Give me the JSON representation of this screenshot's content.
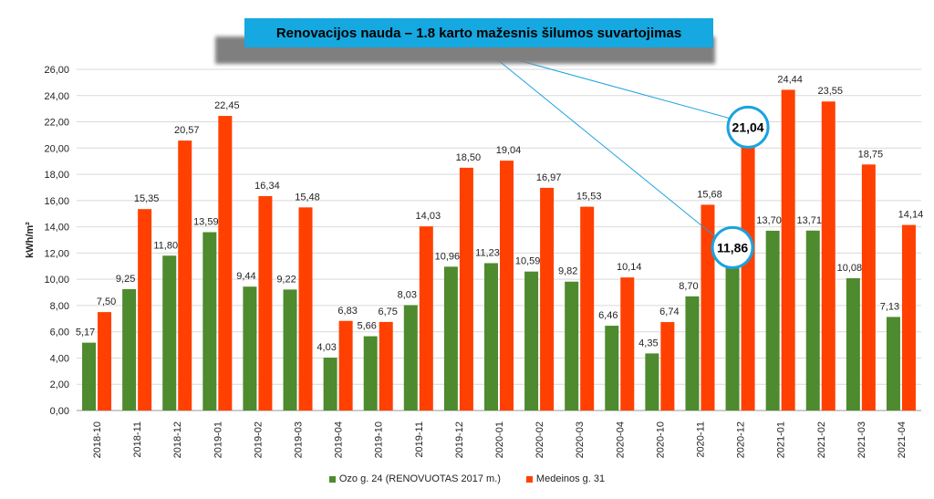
{
  "banner": {
    "text": "Renovacijos nauda – 1.8 karto mažesnis šilumos suvartojimas"
  },
  "chart_data": {
    "type": "bar",
    "title": "Renovacijos nauda – 1.8 karto mažesnis šilumos suvartojimas",
    "xlabel": "",
    "ylabel": "kWh/m²",
    "ylim": [
      0,
      26
    ],
    "yticks": [
      "0,00",
      "2,00",
      "4,00",
      "6,00",
      "8,00",
      "10,00",
      "12,00",
      "14,00",
      "16,00",
      "18,00",
      "20,00",
      "22,00",
      "24,00",
      "26,00"
    ],
    "grid": true,
    "legend_position": "bottom",
    "categories": [
      "2018-10",
      "2018-11",
      "2018-12",
      "2019-01",
      "2019-02",
      "2019-03",
      "2019-04",
      "2019-10",
      "2019-11",
      "2019-12",
      "2020-01",
      "2020-02",
      "2020-03",
      "2020-04",
      "2020-10",
      "2020-11",
      "2020-12",
      "2021-01",
      "2021-02",
      "2021-03",
      "2021-04"
    ],
    "series": [
      {
        "name": "Ozo g. 24 (RENOVUOTAS 2017 m.)",
        "color": "#4e8a2e",
        "values": [
          5.17,
          9.25,
          11.8,
          13.59,
          9.44,
          9.22,
          4.03,
          5.66,
          8.03,
          10.96,
          11.23,
          10.59,
          9.82,
          6.46,
          4.35,
          8.7,
          11.86,
          13.7,
          13.71,
          10.08,
          7.13
        ],
        "labels": [
          "5,17",
          "9,25",
          "11,80",
          "13,59",
          "9,44",
          "9,22",
          "4,03",
          "5,66",
          "8,03",
          "10,96",
          "11,23",
          "10,59",
          "9,82",
          "6,46",
          "4,35",
          "8,70",
          "11,86",
          "13,70",
          "13,71",
          "10,08",
          "7,13"
        ]
      },
      {
        "name": "Medeinos g. 31",
        "color": "#ff4000",
        "values": [
          7.5,
          15.35,
          20.57,
          22.45,
          16.34,
          15.48,
          6.83,
          6.75,
          14.03,
          18.5,
          19.04,
          16.97,
          15.53,
          10.14,
          6.74,
          15.68,
          21.04,
          24.44,
          23.55,
          18.75,
          14.14
        ],
        "labels": [
          "7,50",
          "15,35",
          "20,57",
          "22,45",
          "16,34",
          "15,48",
          "6,83",
          "6,75",
          "14,03",
          "18,50",
          "19,04",
          "16,97",
          "15,53",
          "10,14",
          "6,74",
          "15,68",
          "21,04",
          "24,44",
          "23,55",
          "18,75",
          "14,14"
        ]
      }
    ],
    "highlights": [
      {
        "series": 1,
        "index": 16,
        "label": "21,04"
      },
      {
        "series": 0,
        "index": 16,
        "label": "11,86"
      }
    ],
    "highlight_color": "#1aa3e0"
  }
}
